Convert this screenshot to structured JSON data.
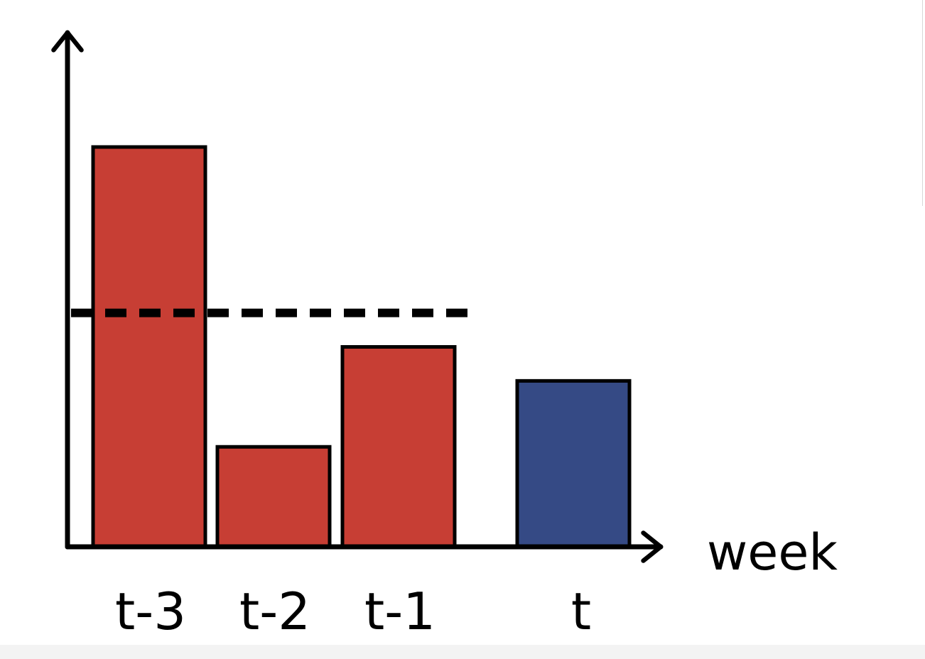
{
  "chart_data": {
    "type": "bar",
    "categories": [
      "t-3",
      "t-2",
      "t-1",
      "t"
    ],
    "values": [
      10,
      2.5,
      5,
      4.15
    ],
    "colors": [
      "#c73e34",
      "#c73e34",
      "#c73e34",
      "#354a85"
    ],
    "xlabel": "week",
    "ylabel": "",
    "ylim": [
      0,
      12.5
    ],
    "reference_line": {
      "style": "dashed",
      "value": 5.85,
      "span_categories": [
        "t-3",
        "t-1"
      ]
    },
    "grid": false,
    "legend": "none"
  }
}
